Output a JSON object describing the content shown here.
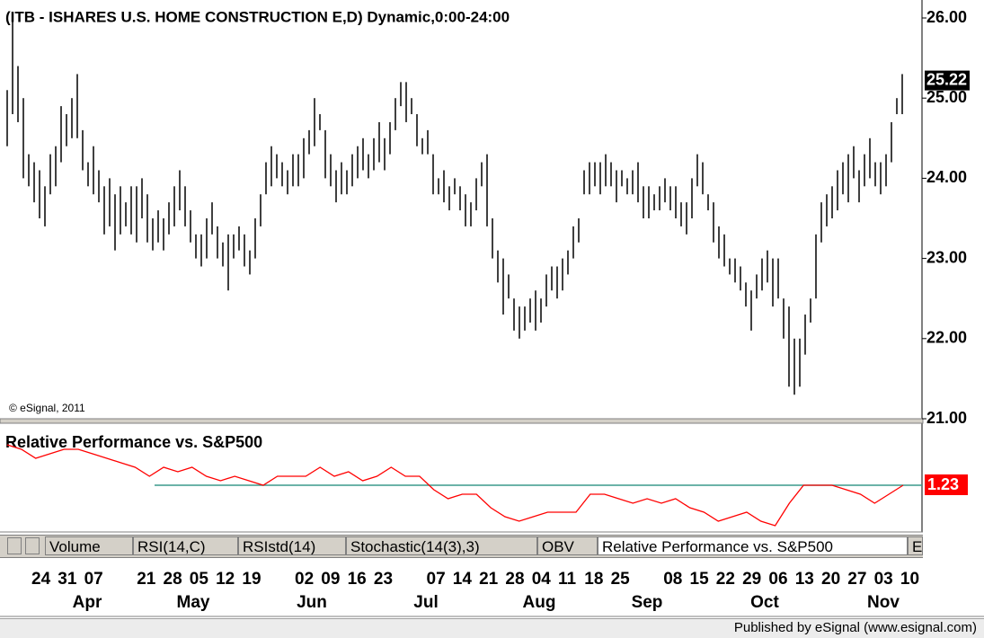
{
  "chart_data": [
    {
      "type": "range_bar",
      "title": "(ITB - ISHARES U.S. HOME CONSTRUCTION E,D) Dynamic,0:00-24:00",
      "annotation": "© eSignal, 2011",
      "color": "#000000",
      "ylim": [
        21,
        26
      ],
      "yticks": [
        {
          "value": 21,
          "label": "21.00"
        },
        {
          "value": 22,
          "label": "22.00"
        },
        {
          "value": 23,
          "label": "23.00"
        },
        {
          "value": 24,
          "label": "24.00"
        },
        {
          "value": 25,
          "label": "25.00"
        },
        {
          "value": 26,
          "label": "26.00"
        }
      ],
      "last_value": 25.22,
      "high": [
        25.1,
        26.0,
        25.4,
        25.0,
        24.3,
        24.2,
        24.1,
        23.9,
        24.3,
        24.4,
        24.9,
        24.8,
        25.0,
        25.3,
        24.6,
        24.2,
        24.4,
        24.1,
        23.9,
        24.0,
        23.8,
        23.9,
        23.7,
        23.9,
        23.9,
        24.0,
        23.8,
        23.5,
        23.6,
        23.5,
        23.7,
        23.9,
        24.1,
        23.9,
        23.6,
        23.3,
        23.3,
        23.5,
        23.7,
        23.4,
        23.2,
        23.3,
        23.3,
        23.4,
        23.3,
        23.1,
        23.5,
        23.8,
        24.2,
        24.4,
        24.3,
        24.2,
        24.1,
        24.3,
        24.3,
        24.5,
        24.6,
        25.0,
        24.8,
        24.6,
        24.3,
        24.1,
        24.2,
        24.1,
        24.3,
        24.4,
        24.5,
        24.3,
        24.5,
        24.7,
        24.5,
        24.7,
        25.0,
        25.2,
        25.2,
        25.0,
        24.8,
        24.5,
        24.6,
        24.3,
        24.0,
        24.1,
        23.9,
        24.0,
        23.9,
        23.8,
        23.7,
        24.0,
        24.2,
        24.3,
        23.5,
        23.1,
        23.0,
        22.8,
        22.5,
        22.4,
        22.4,
        22.5,
        22.6,
        22.5,
        22.8,
        22.9,
        22.9,
        23.0,
        23.1,
        23.4,
        23.5,
        24.1,
        24.2,
        24.2,
        24.2,
        24.3,
        24.2,
        24.1,
        24.1,
        24.0,
        24.1,
        24.2,
        23.9,
        23.9,
        23.8,
        23.9,
        24.0,
        23.9,
        23.9,
        23.7,
        23.7,
        24.0,
        24.3,
        24.2,
        23.8,
        23.7,
        23.4,
        23.3,
        23.0,
        23.0,
        22.9,
        22.7,
        22.6,
        22.8,
        23.0,
        23.1,
        23.0,
        23.0,
        22.5,
        22.4,
        22.0,
        22.0,
        22.3,
        22.5,
        23.3,
        23.7,
        23.8,
        23.9,
        24.1,
        24.2,
        24.3,
        24.4,
        24.1,
        24.3,
        24.5,
        24.2,
        24.2,
        24.3,
        24.7,
        25.0,
        25.3
      ],
      "low": [
        24.4,
        24.8,
        24.7,
        24.0,
        23.9,
        23.7,
        23.5,
        23.4,
        23.8,
        23.9,
        24.2,
        24.4,
        24.5,
        24.5,
        24.1,
        23.9,
        23.8,
        23.7,
        23.3,
        23.4,
        23.1,
        23.3,
        23.4,
        23.3,
        23.2,
        23.5,
        23.2,
        23.1,
        23.2,
        23.1,
        23.3,
        23.4,
        23.6,
        23.4,
        23.2,
        23.0,
        22.9,
        23.0,
        23.3,
        23.0,
        22.9,
        22.6,
        23.0,
        23.1,
        22.9,
        22.8,
        23.0,
        23.4,
        23.8,
        23.9,
        24.0,
        23.9,
        23.8,
        23.9,
        23.9,
        24.0,
        24.3,
        24.4,
        24.6,
        24.0,
        23.9,
        23.7,
        23.8,
        23.8,
        23.9,
        24.0,
        24.1,
        24.0,
        24.1,
        24.2,
        24.1,
        24.3,
        24.6,
        24.9,
        24.7,
        24.8,
        24.4,
        24.3,
        24.3,
        23.8,
        23.8,
        23.7,
        23.6,
        23.8,
        23.6,
        23.4,
        23.4,
        23.6,
        23.9,
        23.4,
        23.0,
        22.7,
        22.3,
        22.5,
        22.1,
        22.0,
        22.1,
        22.2,
        22.1,
        22.2,
        22.4,
        22.6,
        22.5,
        22.6,
        22.8,
        23.0,
        23.2,
        23.8,
        23.8,
        23.9,
        23.8,
        23.9,
        23.9,
        23.7,
        23.9,
        23.8,
        23.8,
        23.7,
        23.5,
        23.5,
        23.6,
        23.6,
        23.7,
        23.6,
        23.5,
        23.4,
        23.3,
        23.5,
        23.9,
        23.8,
        23.6,
        23.2,
        23.0,
        22.9,
        22.8,
        22.7,
        22.6,
        22.4,
        22.1,
        22.5,
        22.6,
        22.7,
        22.4,
        22.5,
        22.0,
        21.4,
        21.3,
        21.4,
        21.8,
        22.2,
        22.5,
        23.2,
        23.4,
        23.5,
        23.6,
        23.8,
        23.7,
        24.0,
        23.7,
        23.9,
        24.0,
        23.9,
        23.8,
        23.9,
        24.2,
        24.8,
        24.8
      ]
    },
    {
      "type": "line",
      "title": "Relative Performance vs. S&P500",
      "color": "#ff0000",
      "ylim": [
        1.13,
        1.35
      ],
      "reference_line": 1.23,
      "reference_color": "#3a9a8c",
      "values": [
        1.32,
        1.31,
        1.29,
        1.3,
        1.31,
        1.31,
        1.3,
        1.29,
        1.28,
        1.27,
        1.25,
        1.27,
        1.26,
        1.27,
        1.25,
        1.24,
        1.25,
        1.24,
        1.23,
        1.25,
        1.25,
        1.25,
        1.27,
        1.25,
        1.26,
        1.24,
        1.25,
        1.27,
        1.25,
        1.25,
        1.22,
        1.2,
        1.21,
        1.21,
        1.18,
        1.16,
        1.15,
        1.16,
        1.17,
        1.17,
        1.17,
        1.21,
        1.21,
        1.2,
        1.19,
        1.2,
        1.19,
        1.2,
        1.18,
        1.17,
        1.15,
        1.16,
        1.17,
        1.15,
        1.14,
        1.19,
        1.23,
        1.23,
        1.23,
        1.22,
        1.21,
        1.19,
        1.21,
        1.23
      ]
    }
  ],
  "tabs": [
    "Volume",
    "RSI(14,C)",
    "RSIstd(14)",
    "Stochastic(14(3),3)",
    "OBV",
    "Relative Performance vs. S&P500",
    "E"
  ],
  "date_axis": {
    "days": [
      "24",
      "31",
      "07",
      "21",
      "28",
      "05",
      "12",
      "19",
      "02",
      "09",
      "16",
      "23",
      "07",
      "14",
      "21",
      "28",
      "04",
      "11",
      "18",
      "25",
      "08",
      "15",
      "22",
      "29",
      "06",
      "13",
      "20",
      "27",
      "03",
      "10"
    ],
    "months": [
      "Apr",
      "May",
      "Jun",
      "Jul",
      "Aug",
      "Sep",
      "Oct",
      "Nov"
    ]
  },
  "footer": "Published by eSignal (www.esignal.com)"
}
